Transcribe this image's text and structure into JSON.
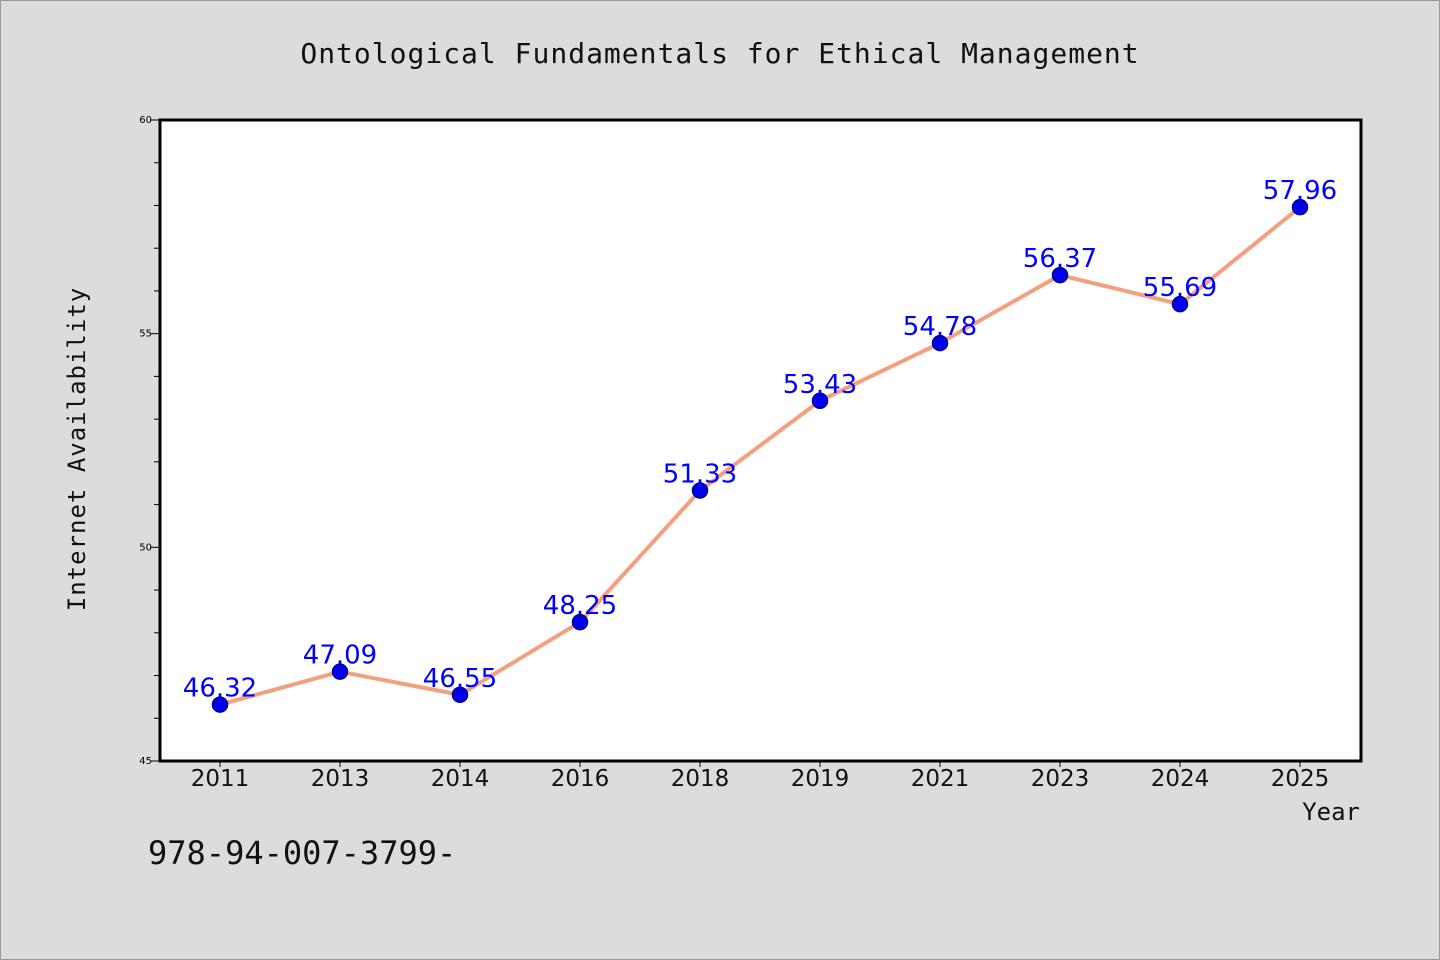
{
  "chart_data": {
    "type": "line",
    "title": "Ontological Fundamentals for Ethical Management",
    "xlabel": "Year",
    "ylabel": "Internet Availability",
    "categories": [
      "2011",
      "2013",
      "2014",
      "2016",
      "2018",
      "2019",
      "2021",
      "2023",
      "2024",
      "2025"
    ],
    "values": [
      46.32,
      47.09,
      46.55,
      48.25,
      51.33,
      53.43,
      54.78,
      56.37,
      55.69,
      57.96
    ],
    "data_labels": [
      "46.32",
      "47.09",
      "46.55",
      "48.25",
      "51.33",
      "53.43",
      "54.78",
      "56.37",
      "55.69",
      "57.96"
    ],
    "ylim": [
      45,
      60
    ],
    "y_major_ticks": [
      "45",
      "50",
      "55",
      "60"
    ],
    "y_minor_step": 1,
    "grid": false,
    "line_color": "#f4a07f",
    "marker_color": "#0000ee",
    "label_color": "#0000ff",
    "background_color": "#dcdcdc",
    "plot_background_color": "#ffffff"
  },
  "footer_text": "978-94-007-3799-"
}
